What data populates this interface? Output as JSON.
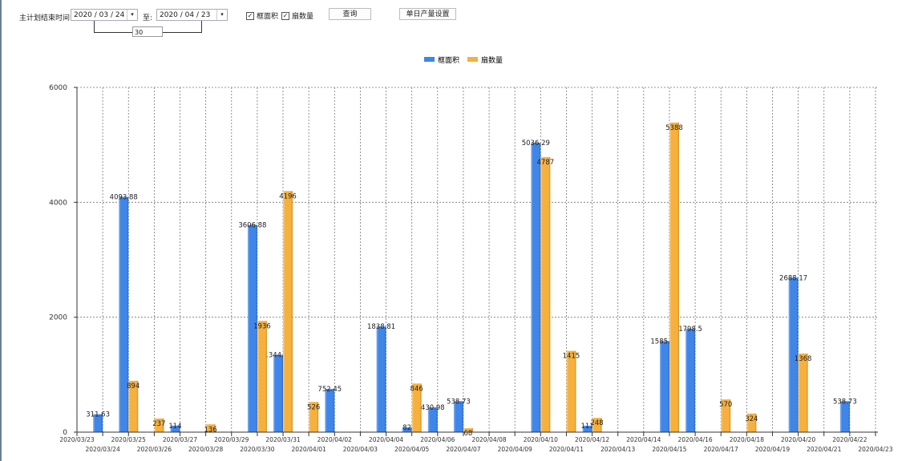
{
  "toolbar": {
    "date_label": "主计划结束时间:",
    "start_date": "2020 / 03 / 24",
    "to_label": "至:",
    "end_date": "2020 / 04 / 23",
    "days": "30",
    "check_area_label": "框面积",
    "check_count_label": "扇数量",
    "check_area_checked": true,
    "check_count_checked": true,
    "query_label": "查询",
    "settings_label": "单日产量设置"
  },
  "chart_data": {
    "type": "bar",
    "title": "",
    "xlabel": "",
    "ylabel": "",
    "ylim": [
      0,
      6000
    ],
    "yticks": [
      "0",
      "2000",
      "4000",
      "6000"
    ],
    "grid": true,
    "legend_position": "top-center",
    "categories": [
      "2020/03/23",
      "2020/03/24",
      "2020/03/25",
      "2020/03/26",
      "2020/03/27",
      "2020/03/28",
      "2020/03/29",
      "2020/03/30",
      "2020/03/31",
      "2020/04/01",
      "2020/04/02",
      "2020/04/03",
      "2020/04/04",
      "2020/04/05",
      "2020/04/06",
      "2020/04/07",
      "2020/04/08",
      "2020/04/09",
      "2020/04/10",
      "2020/04/11",
      "2020/04/12",
      "2020/04/13",
      "2020/04/14",
      "2020/04/15",
      "2020/04/16",
      "2020/04/17",
      "2020/04/18",
      "2020/04/19",
      "2020/04/20",
      "2020/04/21",
      "2020/04/22",
      "2020/04/23"
    ],
    "series": [
      {
        "name": "框面积",
        "color": "#3f86e8",
        "values": [
          0,
          311.63,
          4093.88,
          0,
          114,
          0,
          0,
          3606.88,
          1344.95,
          0,
          752.45,
          0,
          1838.81,
          82,
          430.98,
          538.73,
          0,
          0,
          5036.29,
          0,
          111,
          0,
          0,
          1585.96,
          1798.5,
          0,
          0,
          0,
          2688.17,
          0,
          538.73,
          0
        ]
      },
      {
        "name": "扇数量",
        "color": "#f6b03e",
        "values": [
          0,
          0,
          894,
          237,
          0,
          136,
          0,
          1936,
          4196,
          526,
          0,
          0,
          0,
          846,
          0,
          68,
          0,
          0,
          4787,
          1415,
          248,
          0,
          0,
          5388,
          0,
          570,
          324,
          0,
          1368,
          0,
          0,
          0
        ]
      }
    ]
  }
}
